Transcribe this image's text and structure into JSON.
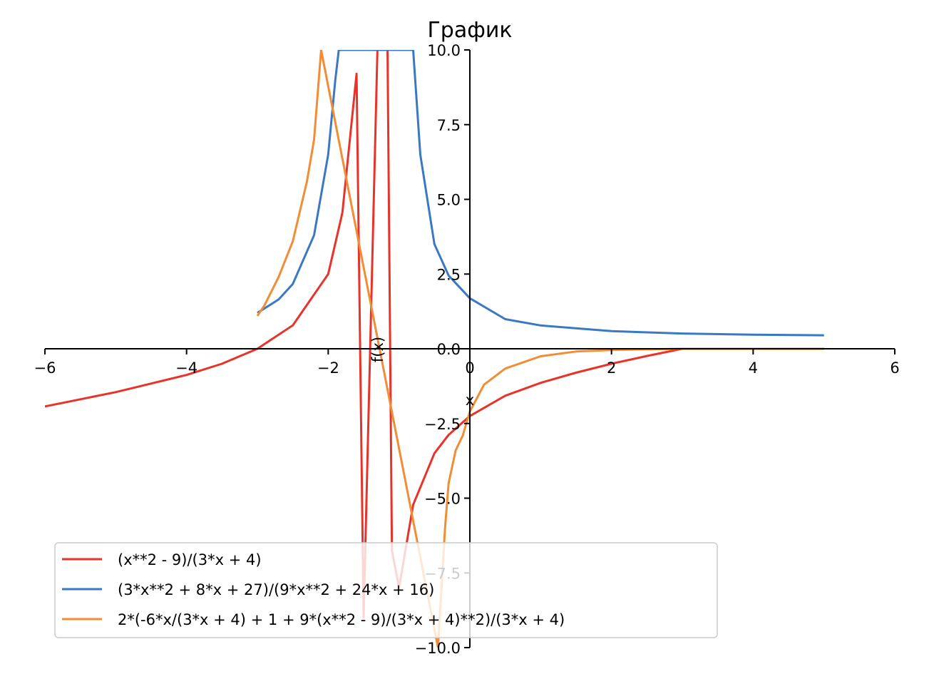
{
  "chart_data": {
    "type": "line",
    "title": "График",
    "xlabel": "x",
    "ylabel": "f(x)",
    "xlim": [
      -6,
      6
    ],
    "ylim": [
      -10,
      10
    ],
    "xticks": [
      -6,
      -4,
      -2,
      0,
      2,
      4,
      6
    ],
    "xtick_labels": [
      "−6",
      "−4",
      "−2",
      "0",
      "2",
      "4",
      "6"
    ],
    "yticks": [
      -10,
      -7.5,
      -5,
      -2.5,
      0,
      2.5,
      5,
      7.5,
      10
    ],
    "ytick_labels": [
      "−10.0",
      "−7.5",
      "−5.0",
      "−2.5",
      "0.0",
      "2.5",
      "5.0",
      "7.5",
      "10.0"
    ],
    "grid": false,
    "legend_position": "lower-left",
    "series": [
      {
        "name": "(x**2 - 9)/(3*x + 4)",
        "color": "#e8332a",
        "x": [
          -6,
          -5,
          -4,
          -3.5,
          -3,
          -2.5,
          -2,
          -1.8,
          -1.6,
          -1.5,
          -1.2,
          -1.1,
          -1,
          -0.8,
          -0.5,
          -0.3,
          0,
          0.5,
          1,
          1.5,
          2,
          2.5,
          3
        ],
        "y": [
          -1.93,
          -1.45,
          -0.875,
          -0.5,
          0,
          0.786,
          2.5,
          4.55,
          9.2,
          -9.0,
          20.25,
          -6.75,
          -8,
          -5.22,
          -3.5,
          -2.88,
          -2.25,
          -1.57,
          -1.14,
          -0.8,
          -0.5,
          -0.24,
          0
        ]
      },
      {
        "name": "(3*x**2 + 8*x + 27)/(9*x**2 + 24*x + 16)",
        "color": "#3a78c3",
        "x": [
          -3,
          -2.7,
          -2.5,
          -2.2,
          -2,
          -1.9,
          -1.85,
          -0.8,
          -0.7,
          -0.5,
          -0.3,
          0,
          0.5,
          1,
          2,
          3,
          4,
          5
        ],
        "y": [
          1.2,
          1.65,
          2.17,
          3.8,
          6.5,
          9.0,
          10.0,
          10.0,
          6.5,
          3.5,
          2.45,
          1.69,
          0.99,
          0.78,
          0.59,
          0.51,
          0.47,
          0.45
        ]
      },
      {
        "name": "2*(-6*x/(3*x + 4) + 1 + 9*(x**2 - 9)/(3*x + 4)**2)/(3*x + 4)",
        "color": "#f28d35",
        "x": [
          -3,
          -2.9,
          -2.7,
          -2.5,
          -2.3,
          -2.2,
          -2.1,
          -0.45,
          -0.35,
          -0.3,
          -0.2,
          -0.1,
          0,
          0.2,
          0.5,
          1,
          1.5,
          2,
          3,
          4,
          5
        ],
        "y": [
          1.1,
          1.45,
          2.4,
          3.6,
          5.6,
          7.0,
          10.0,
          -10.0,
          -6.0,
          -4.5,
          -3.4,
          -2.9,
          -2.1,
          -1.2,
          -0.66,
          -0.25,
          -0.09,
          -0.04,
          0,
          0,
          0
        ]
      }
    ]
  }
}
